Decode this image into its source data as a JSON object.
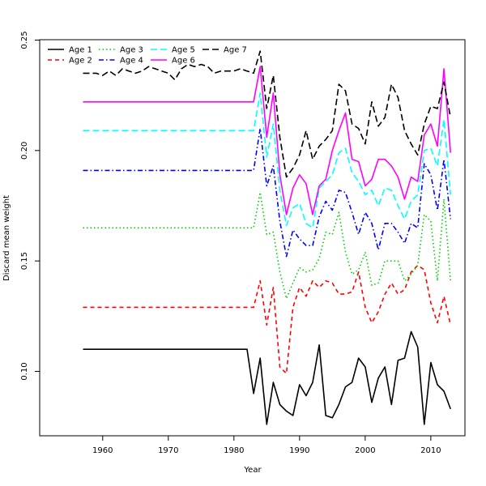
{
  "chart_data": {
    "type": "line",
    "title": "",
    "xlabel": "Year",
    "ylabel": "Discard mean weight",
    "xlim": [
      1950,
      2015
    ],
    "ylim": [
      0.07,
      0.25
    ],
    "xticks": [
      1960,
      1970,
      1980,
      1990,
      2000,
      2010
    ],
    "yticks": [
      0.1,
      0.15,
      0.2,
      0.25
    ],
    "xtick_labels": [
      "1960",
      "1970",
      "1980",
      "1990",
      "2000",
      "2010"
    ],
    "ytick_labels": [
      "0.10",
      "0.15",
      "0.20",
      "0.25"
    ],
    "legend_position": "top-left",
    "x": [
      1957,
      1958,
      1959,
      1960,
      1961,
      1962,
      1963,
      1964,
      1965,
      1966,
      1967,
      1968,
      1969,
      1970,
      1971,
      1972,
      1973,
      1974,
      1975,
      1976,
      1977,
      1978,
      1979,
      1980,
      1981,
      1982,
      1983,
      1984,
      1985,
      1986,
      1987,
      1988,
      1989,
      1990,
      1991,
      1992,
      1993,
      1994,
      1995,
      1996,
      1997,
      1998,
      1999,
      2000,
      2001,
      2002,
      2003,
      2004,
      2005,
      2006,
      2007,
      2008,
      2009,
      2010,
      2011,
      2012,
      2013
    ],
    "series": [
      {
        "name": "Age 1",
        "color": "#000000",
        "dash": "solid",
        "values": [
          0.11,
          0.11,
          0.11,
          0.11,
          0.11,
          0.11,
          0.11,
          0.11,
          0.11,
          0.11,
          0.11,
          0.11,
          0.11,
          0.11,
          0.11,
          0.11,
          0.11,
          0.11,
          0.11,
          0.11,
          0.11,
          0.11,
          0.11,
          0.11,
          0.11,
          0.11,
          0.09,
          0.106,
          0.076,
          0.095,
          0.085,
          0.082,
          0.08,
          0.094,
          0.089,
          0.095,
          0.112,
          0.08,
          0.079,
          0.085,
          0.093,
          0.095,
          0.106,
          0.102,
          0.086,
          0.097,
          0.102,
          0.085,
          0.105,
          0.106,
          0.118,
          0.111,
          0.076,
          0.104,
          0.094,
          0.091,
          0.083
        ]
      },
      {
        "name": "Age 2",
        "color": "#ff0000",
        "dash": "dashed",
        "values": [
          0.129,
          0.129,
          0.129,
          0.129,
          0.129,
          0.129,
          0.129,
          0.129,
          0.129,
          0.129,
          0.129,
          0.129,
          0.129,
          0.129,
          0.129,
          0.129,
          0.129,
          0.129,
          0.129,
          0.129,
          0.129,
          0.129,
          0.129,
          0.129,
          0.129,
          0.129,
          0.129,
          0.141,
          0.121,
          0.138,
          0.102,
          0.099,
          0.129,
          0.138,
          0.134,
          0.141,
          0.138,
          0.141,
          0.14,
          0.135,
          0.135,
          0.136,
          0.145,
          0.129,
          0.122,
          0.127,
          0.135,
          0.14,
          0.135,
          0.137,
          0.145,
          0.148,
          0.146,
          0.131,
          0.122,
          0.134,
          0.121
        ]
      },
      {
        "name": "Age 3",
        "color": "#00cd00",
        "dash": "dotted",
        "values": [
          0.165,
          0.165,
          0.165,
          0.165,
          0.165,
          0.165,
          0.165,
          0.165,
          0.165,
          0.165,
          0.165,
          0.165,
          0.165,
          0.165,
          0.165,
          0.165,
          0.165,
          0.165,
          0.165,
          0.165,
          0.165,
          0.165,
          0.165,
          0.165,
          0.165,
          0.165,
          0.165,
          0.181,
          0.162,
          0.163,
          0.145,
          0.133,
          0.14,
          0.147,
          0.145,
          0.146,
          0.151,
          0.163,
          0.162,
          0.172,
          0.154,
          0.144,
          0.146,
          0.154,
          0.139,
          0.14,
          0.15,
          0.15,
          0.15,
          0.141,
          0.144,
          0.148,
          0.171,
          0.168,
          0.141,
          0.178,
          0.141
        ]
      },
      {
        "name": "Age 4",
        "color": "#0000ff",
        "dash": "dashdot",
        "values": [
          0.191,
          0.191,
          0.191,
          0.191,
          0.191,
          0.191,
          0.191,
          0.191,
          0.191,
          0.191,
          0.191,
          0.191,
          0.191,
          0.191,
          0.191,
          0.191,
          0.191,
          0.191,
          0.191,
          0.191,
          0.191,
          0.191,
          0.191,
          0.191,
          0.191,
          0.191,
          0.191,
          0.21,
          0.184,
          0.193,
          0.168,
          0.152,
          0.164,
          0.16,
          0.157,
          0.157,
          0.17,
          0.177,
          0.173,
          0.182,
          0.181,
          0.172,
          0.162,
          0.172,
          0.167,
          0.155,
          0.167,
          0.167,
          0.163,
          0.158,
          0.167,
          0.165,
          0.194,
          0.189,
          0.173,
          0.196,
          0.169
        ]
      },
      {
        "name": "Age 5",
        "color": "#00ffff",
        "dash": "longdash",
        "values": [
          0.209,
          0.209,
          0.209,
          0.209,
          0.209,
          0.209,
          0.209,
          0.209,
          0.209,
          0.209,
          0.209,
          0.209,
          0.209,
          0.209,
          0.209,
          0.209,
          0.209,
          0.209,
          0.209,
          0.209,
          0.209,
          0.209,
          0.209,
          0.209,
          0.209,
          0.209,
          0.209,
          0.226,
          0.197,
          0.212,
          0.182,
          0.166,
          0.174,
          0.176,
          0.167,
          0.165,
          0.183,
          0.186,
          0.189,
          0.199,
          0.201,
          0.19,
          0.186,
          0.18,
          0.182,
          0.175,
          0.183,
          0.182,
          0.175,
          0.169,
          0.177,
          0.18,
          0.2,
          0.201,
          0.193,
          0.214,
          0.18
        ]
      },
      {
        "name": "Age 6",
        "color": "#ff00ff",
        "dash": "solid",
        "values": [
          0.222,
          0.222,
          0.222,
          0.222,
          0.222,
          0.222,
          0.222,
          0.222,
          0.222,
          0.222,
          0.222,
          0.222,
          0.222,
          0.222,
          0.222,
          0.222,
          0.222,
          0.222,
          0.222,
          0.222,
          0.222,
          0.222,
          0.222,
          0.222,
          0.222,
          0.222,
          0.222,
          0.238,
          0.206,
          0.226,
          0.189,
          0.171,
          0.183,
          0.189,
          0.185,
          0.171,
          0.184,
          0.187,
          0.2,
          0.209,
          0.217,
          0.196,
          0.195,
          0.184,
          0.187,
          0.196,
          0.196,
          0.193,
          0.188,
          0.178,
          0.188,
          0.186,
          0.207,
          0.212,
          0.202,
          0.237,
          0.199
        ]
      },
      {
        "name": "Age 7",
        "color": "#000000",
        "dash": "longdash",
        "values": [
          0.235,
          0.235,
          0.235,
          0.234,
          0.236,
          0.234,
          0.237,
          0.236,
          0.235,
          0.236,
          0.238,
          0.237,
          0.236,
          0.235,
          0.232,
          0.237,
          0.239,
          0.238,
          0.239,
          0.238,
          0.235,
          0.236,
          0.236,
          0.236,
          0.237,
          0.236,
          0.235,
          0.245,
          0.219,
          0.234,
          0.206,
          0.188,
          0.192,
          0.198,
          0.209,
          0.196,
          0.202,
          0.205,
          0.209,
          0.23,
          0.227,
          0.212,
          0.21,
          0.203,
          0.222,
          0.211,
          0.215,
          0.23,
          0.224,
          0.209,
          0.203,
          0.198,
          0.212,
          0.22,
          0.219,
          0.231,
          0.215
        ]
      }
    ]
  }
}
